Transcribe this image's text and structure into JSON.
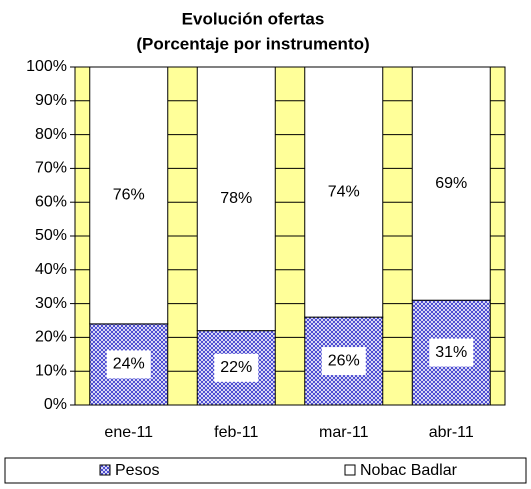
{
  "chart_data": {
    "type": "stacked_bar_percent",
    "title": "Evolución ofertas",
    "subtitle": "(Porcentaje por instrumento)",
    "categories": [
      "ene-11",
      "feb-11",
      "mar-11",
      "abr-11"
    ],
    "series": [
      {
        "name": "Pesos",
        "color": "#3333cc",
        "values": [
          24,
          22,
          26,
          31
        ],
        "value_labels": [
          "24%",
          "22%",
          "26%",
          "31%"
        ]
      },
      {
        "name": "Nobac Badlar",
        "color": "#ffffff",
        "values": [
          76,
          78,
          74,
          69
        ],
        "value_labels": [
          "76%",
          "78%",
          "74%",
          "69%"
        ]
      }
    ],
    "ylim": [
      0,
      100
    ],
    "yticks": [
      {
        "value": 0,
        "label": "0%"
      },
      {
        "value": 10,
        "label": "10%"
      },
      {
        "value": 20,
        "label": "20%"
      },
      {
        "value": 30,
        "label": "30%"
      },
      {
        "value": 40,
        "label": "40%"
      },
      {
        "value": 50,
        "label": "50%"
      },
      {
        "value": 60,
        "label": "60%"
      },
      {
        "value": 70,
        "label": "70%"
      },
      {
        "value": 80,
        "label": "80%"
      },
      {
        "value": 90,
        "label": "90%"
      },
      {
        "value": 100,
        "label": "100%"
      }
    ],
    "grid": true,
    "plot_background": "#ffff99",
    "legend": "bottom"
  }
}
